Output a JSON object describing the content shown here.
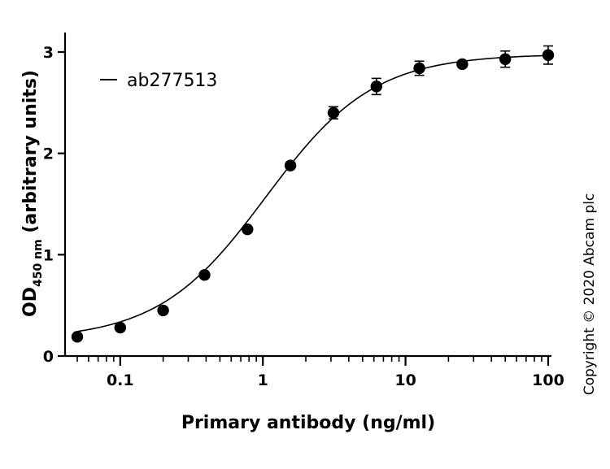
{
  "chart_data": {
    "type": "scatter",
    "xscale": "log",
    "xlim": [
      0.05,
      100
    ],
    "ylim": [
      0,
      3
    ],
    "xticks": [
      {
        "value": 0.1,
        "label": "0.1"
      },
      {
        "value": 1,
        "label": "1"
      },
      {
        "value": 10,
        "label": "10"
      },
      {
        "value": 100,
        "label": "100"
      }
    ],
    "yticks": [
      {
        "value": 0,
        "label": "0"
      },
      {
        "value": 1,
        "label": "1"
      },
      {
        "value": 2,
        "label": "2"
      },
      {
        "value": 3,
        "label": "3"
      }
    ],
    "xlabel": "Primary antibody (ng/ml)",
    "ylabel": {
      "main": "OD",
      "subscript": "450 nm",
      "rest": " (arbitrary units)"
    },
    "legend": {
      "position": "top-left",
      "entries": [
        "ab277513"
      ]
    },
    "series": [
      {
        "name": "ab277513",
        "color": "#000000",
        "points": [
          {
            "x": 0.05,
            "y": 0.19,
            "err": 0
          },
          {
            "x": 0.1,
            "y": 0.28,
            "err": 0
          },
          {
            "x": 0.2,
            "y": 0.45,
            "err": 0
          },
          {
            "x": 0.39,
            "y": 0.8,
            "err": 0
          },
          {
            "x": 0.78,
            "y": 1.25,
            "err": 0
          },
          {
            "x": 1.56,
            "y": 1.88,
            "err": 0
          },
          {
            "x": 3.125,
            "y": 2.4,
            "err": 0.06
          },
          {
            "x": 6.25,
            "y": 2.66,
            "err": 0.08
          },
          {
            "x": 12.5,
            "y": 2.84,
            "err": 0.07
          },
          {
            "x": 25,
            "y": 2.88,
            "err": 0.03
          },
          {
            "x": 50,
            "y": 2.93,
            "err": 0.08
          },
          {
            "x": 100,
            "y": 2.97,
            "err": 0.09
          }
        ],
        "fit": {
          "bottom": 0.16,
          "top": 2.98,
          "ec50": 1.05,
          "hill": 1.15
        }
      }
    ],
    "annotation": "Copyright © 2020 Abcam plc"
  }
}
